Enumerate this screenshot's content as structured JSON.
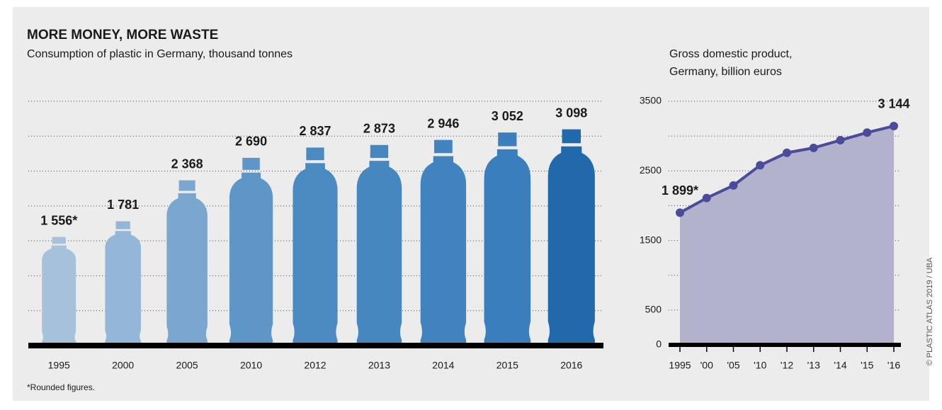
{
  "title": "MORE MONEY, MORE WASTE",
  "subtitle": "Consumption of plastic in Germany, thousand tonnes",
  "note": "*Rounded figures.",
  "credit": "© PLASTIC ATLAS 2019 / UBA",
  "chart_data": [
    {
      "type": "bar",
      "categories": [
        "1995",
        "2000",
        "2005",
        "2010",
        "2012",
        "2013",
        "2014",
        "2015",
        "2016"
      ],
      "values": [
        1556,
        1781,
        2368,
        2690,
        2837,
        2873,
        2946,
        3052,
        3098
      ],
      "value_labels": [
        "1 556*",
        "1 781",
        "2 368",
        "2 690",
        "2 837",
        "2 873",
        "2 946",
        "3 052",
        "3 098"
      ],
      "colors": [
        "#a6c2db",
        "#95b7d7",
        "#7ba7cf",
        "#5f96c8",
        "#4b89c1",
        "#4687c0",
        "#4083be",
        "#3a7fbc",
        "#2269ac"
      ],
      "ylim": [
        0,
        3500
      ],
      "yticks": [
        500,
        1000,
        1500,
        2000,
        2500,
        3000,
        3500
      ],
      "grid": true,
      "y_tick_labels": false
    },
    {
      "type": "line",
      "title": [
        "Gross domestic product,",
        "Germany, billion euros"
      ],
      "categories": [
        "1995",
        "'00",
        "'05",
        "'10",
        "'12",
        "'13",
        "'14",
        "'15",
        "'16"
      ],
      "values": [
        1899,
        2110,
        2290,
        2580,
        2760,
        2830,
        2940,
        3050,
        3144
      ],
      "value_labels": [
        "1 899*",
        null,
        null,
        null,
        null,
        null,
        null,
        null,
        "3 144"
      ],
      "color": "#4b4b9c",
      "area_color": "#b2b2cd",
      "ylim": [
        0,
        3500
      ],
      "yticks": [
        0,
        500,
        1500,
        2500,
        3500
      ],
      "minor_yticks": [
        1000,
        2000,
        3000
      ],
      "grid": true
    }
  ]
}
